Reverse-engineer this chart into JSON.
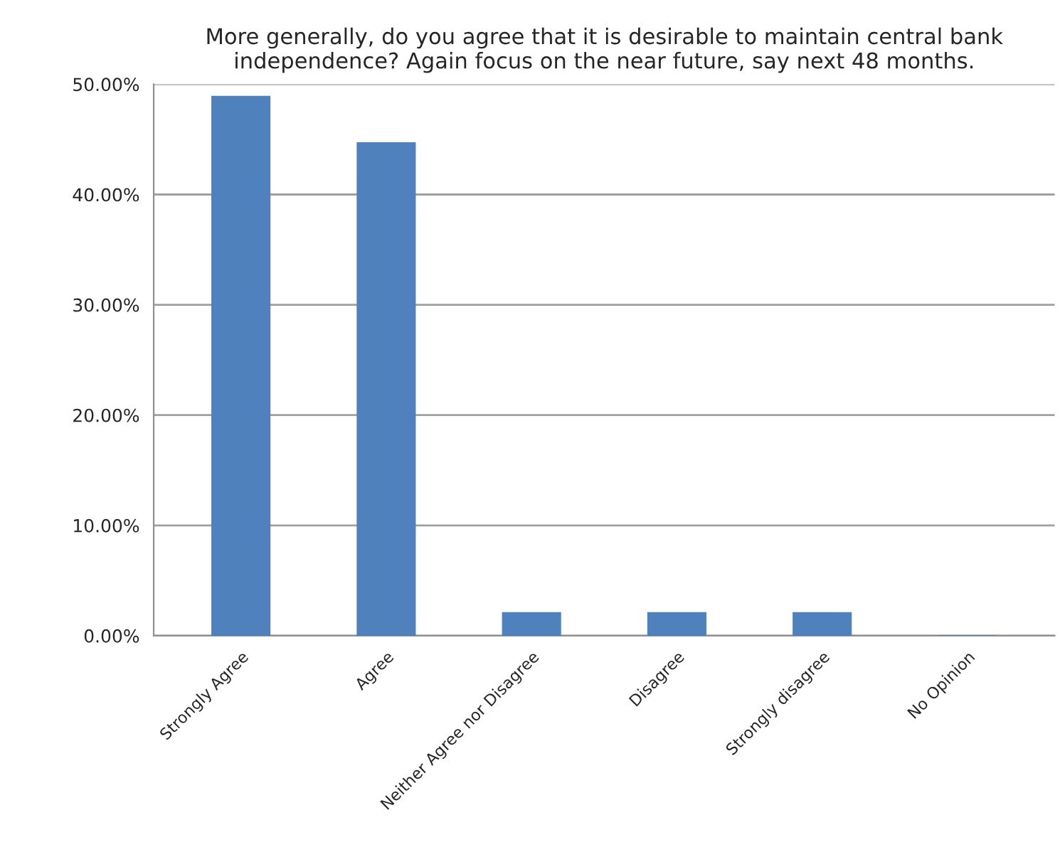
{
  "chart_data": {
    "type": "bar",
    "title": "More generally, do you agree that it is desirable to maintain central bank\nindependence? Again focus on the near future, say next 48 months.",
    "categories": [
      "Strongly Agree",
      "Agree",
      "Neither Agree nor Disagree",
      "Disagree",
      "Strongly disagree",
      "No Opinion"
    ],
    "values": [
      48.9,
      44.7,
      2.1,
      2.1,
      2.1,
      0
    ],
    "color": "#4f81bd",
    "ylim": [
      0,
      50
    ],
    "yticks": [
      {
        "value": 0,
        "label": "0.00%"
      },
      {
        "value": 10,
        "label": "10.00%"
      },
      {
        "value": 20,
        "label": "20.00%"
      },
      {
        "value": 30,
        "label": "30.00%"
      },
      {
        "value": 40,
        "label": "40.00%"
      },
      {
        "value": 50,
        "label": "50.00%"
      }
    ],
    "grid": "y",
    "legend": false
  }
}
